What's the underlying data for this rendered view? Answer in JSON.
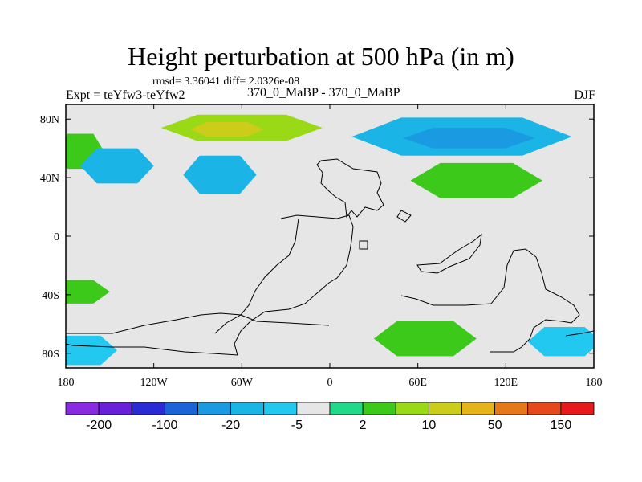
{
  "chart_data": {
    "type": "heatmap",
    "title": "Height perturbation at 500 hPa (in m)",
    "subtitle": "rmsd= 3.36041 diff= 2.0326e-08",
    "left_label": "Expt = teYfw3-teYfw2",
    "center_label": "370_0_MaBP - 370_0_MaBP",
    "right_label": "DJF",
    "x_range": [
      -180,
      180
    ],
    "y_range": [
      -90,
      90
    ],
    "x_ticks": [
      {
        "value": -180,
        "label": "180"
      },
      {
        "value": -120,
        "label": "120W"
      },
      {
        "value": -60,
        "label": "60W"
      },
      {
        "value": 0,
        "label": "0"
      },
      {
        "value": 60,
        "label": "60E"
      },
      {
        "value": 120,
        "label": "120E"
      },
      {
        "value": 180,
        "label": "180"
      }
    ],
    "y_ticks": [
      {
        "value": 80,
        "label": "80N"
      },
      {
        "value": 40,
        "label": "40N"
      },
      {
        "value": 0,
        "label": "0"
      },
      {
        "value": -40,
        "label": "40S"
      },
      {
        "value": -80,
        "label": "80S"
      }
    ],
    "colorbar": {
      "colors": [
        "#8a2be2",
        "#6a1fd8",
        "#2b2bd6",
        "#1a64d8",
        "#1a9ae0",
        "#1ab4e6",
        "#22c8f0",
        "#e6e6e6",
        "#22d98a",
        "#3cc91a",
        "#99d916",
        "#cccc1a",
        "#e6b41a",
        "#e6781a",
        "#e64a1a",
        "#e61a1a"
      ],
      "labels": [
        {
          "after_box": 1,
          "text": "-200"
        },
        {
          "after_box": 3,
          "text": "-100"
        },
        {
          "after_box": 5,
          "text": "-20"
        },
        {
          "after_box": 7,
          "text": "-5"
        },
        {
          "after_box": 9,
          "text": "2"
        },
        {
          "after_box": 11,
          "text": "10"
        },
        {
          "after_box": 13,
          "text": "50"
        },
        {
          "after_box": 15,
          "text": "150"
        }
      ]
    },
    "regions": [
      {
        "name": "arctic-positive",
        "value": 12,
        "center": [
          -60,
          74
        ],
        "radius": [
          55,
          9
        ]
      },
      {
        "name": "arctic-positive-core",
        "value": 30,
        "center": [
          -70,
          73
        ],
        "radius": [
          25,
          5
        ]
      },
      {
        "name": "west-atlantic-positive",
        "value": 8,
        "center": [
          -170,
          58
        ],
        "radius": [
          16,
          12
        ]
      },
      {
        "name": "north-pacific-negative",
        "value": -12,
        "center": [
          -145,
          48
        ],
        "radius": [
          25,
          12
        ]
      },
      {
        "name": "north-atlantic-negative",
        "value": -12,
        "center": [
          -75,
          42
        ],
        "radius": [
          25,
          13
        ]
      },
      {
        "name": "siberia-negative",
        "value": -15,
        "center": [
          90,
          68
        ],
        "radius": [
          75,
          13
        ]
      },
      {
        "name": "siberia-negative-core",
        "value": -22,
        "center": [
          95,
          67
        ],
        "radius": [
          45,
          7
        ]
      },
      {
        "name": "asia-positive",
        "value": 8,
        "center": [
          100,
          38
        ],
        "radius": [
          45,
          12
        ]
      },
      {
        "name": "south-pacific-positive",
        "value": 7,
        "center": [
          -175,
          -38
        ],
        "radius": [
          25,
          8
        ]
      },
      {
        "name": "southern-ocean-negative",
        "value": -6,
        "center": [
          -170,
          -78
        ],
        "radius": [
          25,
          10
        ]
      },
      {
        "name": "south-indian-positive",
        "value": 9,
        "center": [
          65,
          -70
        ],
        "radius": [
          35,
          12
        ]
      },
      {
        "name": "south-east-negative",
        "value": -6,
        "center": [
          160,
          -72
        ],
        "radius": [
          25,
          10
        ]
      }
    ]
  }
}
